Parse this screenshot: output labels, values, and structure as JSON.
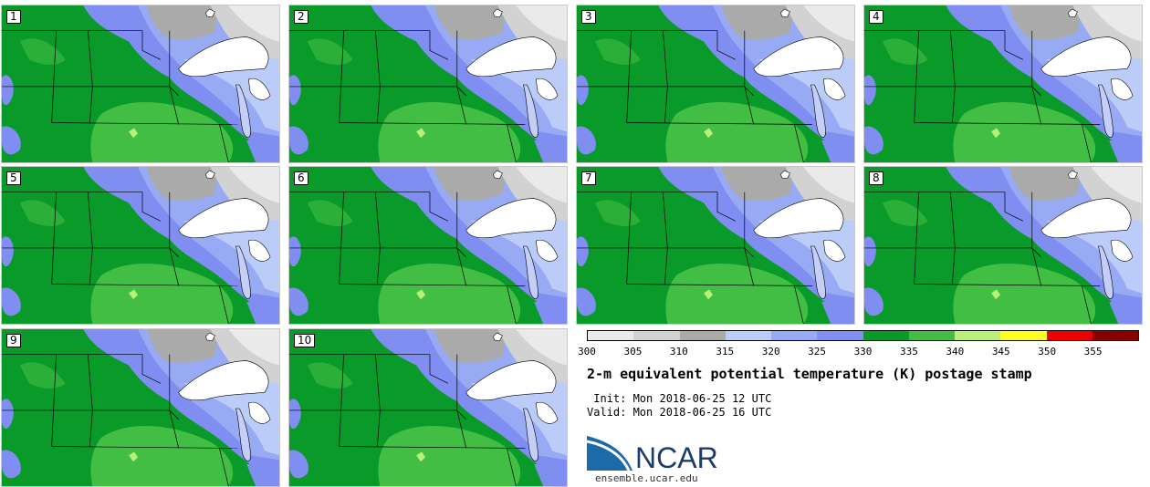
{
  "panels": [
    "1",
    "2",
    "3",
    "4",
    "5",
    "6",
    "7",
    "8",
    "9",
    "10"
  ],
  "colorbar": {
    "colors": [
      "#eaeaea",
      "#d2d2d2",
      "#aaaaaa",
      "#bcccf8",
      "#98aaf4",
      "#7f8ef0",
      "#0a9a2a",
      "#42be44",
      "#b8f07a",
      "#ffff22",
      "#ee0000",
      "#880000"
    ],
    "ticks": [
      "300",
      "305",
      "310",
      "315",
      "320",
      "325",
      "330",
      "335",
      "340",
      "345",
      "350",
      "355"
    ]
  },
  "title": "2-m equivalent potential temperature (K) postage stamp",
  "init_text": " Init: Mon 2018-06-25 12 UTC",
  "valid_text": "Valid: Mon 2018-06-25 16 UTC",
  "logo": {
    "name": "NCAR",
    "url": "ensemble.ucar.edu",
    "color": "#1d3c6c"
  }
}
